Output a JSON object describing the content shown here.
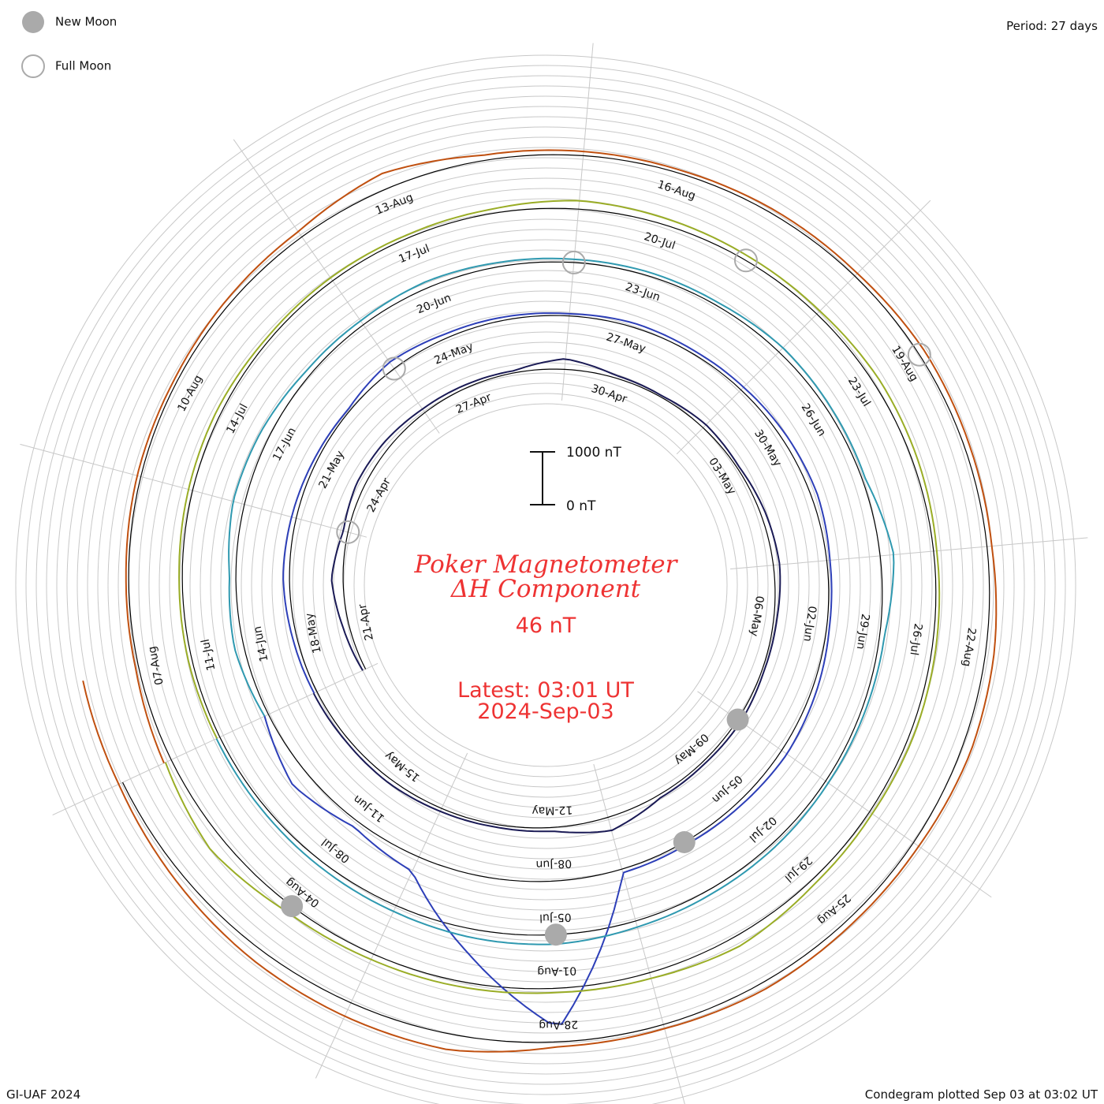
{
  "legend": {
    "new_moon": "New Moon",
    "full_moon": "Full Moon"
  },
  "period_label": "Period: 27 days",
  "footer_left": "GI-UAF 2024",
  "footer_right": "Condegram plotted Sep 03 at 03:02 UT",
  "colors": {
    "title": "#ee3333",
    "reference_circle": "#000000",
    "grid": "#c8c8c8",
    "new_moon_fill": "#aaaaaa",
    "full_moon_stroke": "#aaaaaa"
  },
  "chart_data": {
    "type": "condegram",
    "title": "Poker Magnetometer",
    "subtitle": "ΔH Component",
    "current_value": "46 nT",
    "latest_time": "Latest: 03:01 UT",
    "latest_date": "2024-Sep-03",
    "period_days": 27,
    "scale": {
      "top_label": "1000 nT",
      "bottom_label": "0 nT",
      "range_nT": [
        0,
        1000
      ]
    },
    "date_labels": [
      [
        "21-Apr",
        "24-Apr",
        "27-Apr",
        "30-Apr",
        "03-May",
        "06-May",
        "09-May",
        "12-May",
        "15-May"
      ],
      [
        "18-May",
        "21-May",
        "24-May",
        "27-May",
        "30-May",
        "02-Jun",
        "05-Jun",
        "08-Jun",
        "11-Jun"
      ],
      [
        "14-Jun",
        "17-Jun",
        "20-Jun",
        "23-Jun",
        "26-Jun",
        "29-Jun",
        "02-Jul",
        "05-Jul",
        "08-Jul"
      ],
      [
        "11-Jul",
        "14-Jul",
        "17-Jul",
        "20-Jul",
        "23-Jul",
        "26-Jul",
        "29-Jul",
        "01-Aug",
        "04-Aug"
      ],
      [
        "07-Aug",
        "10-Aug",
        "13-Aug",
        "16-Aug",
        "19-Aug",
        "22-Aug",
        "25-Aug",
        "28-Aug"
      ]
    ],
    "series": [
      {
        "period": 1,
        "start": "2024-04-20",
        "end": "2024-05-17",
        "color": "#1a1a55",
        "values_nT": [
          60,
          120,
          220,
          90,
          150,
          130,
          80,
          60,
          40,
          200,
          50,
          30,
          80,
          40,
          90,
          120,
          60,
          40,
          70,
          50,
          60,
          260,
          70,
          50,
          60,
          80,
          60,
          70
        ]
      },
      {
        "period": 2,
        "start": "2024-05-17",
        "end": "2024-06-13",
        "color": "#2d3fb8",
        "values_nT": [
          60,
          80,
          120,
          90,
          60,
          40,
          150,
          80,
          60,
          40,
          80,
          60,
          70,
          100,
          120,
          60,
          50,
          90,
          120,
          80,
          60,
          70,
          2800,
          1500,
          300,
          120,
          350,
          80
        ]
      },
      {
        "period": 3,
        "start": "2024-06-13",
        "end": "2024-07-10",
        "color": "#2f99b0",
        "values_nT": [
          80,
          180,
          120,
          220,
          180,
          100,
          90,
          120,
          80,
          60,
          70,
          60,
          110,
          80,
          60,
          260,
          90,
          70,
          60,
          80,
          90,
          120,
          180,
          160,
          120,
          100,
          80,
          70
        ]
      },
      {
        "period": 4,
        "start": "2024-07-10",
        "end": "2024-08-06",
        "color": "#9aad26",
        "values_nT": [
          60,
          70,
          60,
          80,
          90,
          60,
          70,
          60,
          80,
          160,
          120,
          90,
          80,
          120,
          100,
          60,
          70,
          80,
          60,
          90,
          200,
          110,
          80,
          100,
          110,
          140,
          300,
          120
        ]
      },
      {
        "period": 5,
        "start": "2024-08-06",
        "end": "2024-09-03",
        "color": "#c05010",
        "values_nT": [
          150,
          60,
          50,
          70,
          60,
          90,
          120,
          300,
          100,
          80,
          60,
          80,
          70,
          120,
          100,
          90,
          160,
          180,
          120,
          110,
          130,
          80,
          90,
          300,
          280,
          240,
          160,
          80,
          70
        ]
      }
    ],
    "new_moons": [
      "2024-05-08",
      "2024-06-06",
      "2024-07-05",
      "2024-08-04"
    ],
    "full_moons": [
      "2024-04-23",
      "2024-05-23",
      "2024-06-22",
      "2024-07-21",
      "2024-08-19"
    ]
  }
}
